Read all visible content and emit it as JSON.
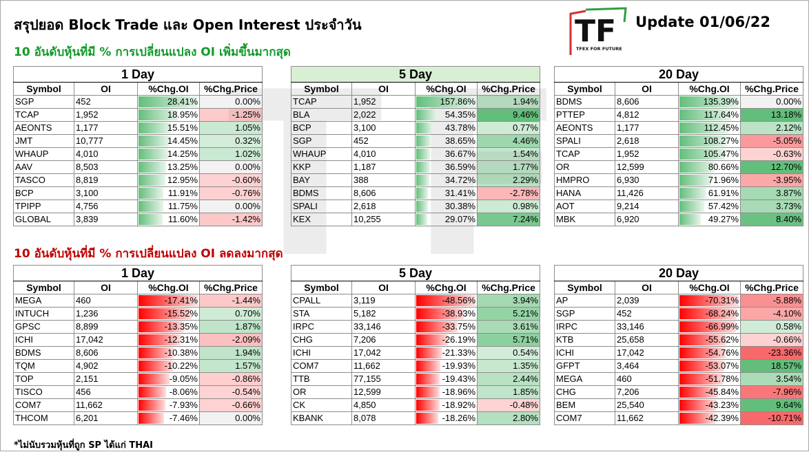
{
  "header": {
    "title": "สรุปยอด Block Trade และ Open Interest ประจำวัน",
    "update": "Update 01/06/22"
  },
  "logo": {
    "letters": "TF",
    "caption": "TFEX FOR FUTURE"
  },
  "section_up": {
    "title": "10 อันดับหุ้นที่มี % การเปลี่ยนแปลง OI เพิ่มขึ้นมากสุด"
  },
  "section_down": {
    "title": "10 อันดับหุ้นที่มี % การเปลี่ยนแปลง OI ลดลงมากสุด"
  },
  "footnote": "*ไม่นับรวมหุ้นที่ถูก SP ได้แก่ THAI",
  "columns": [
    "Symbol",
    "OI",
    "%Chg.OI",
    "%Chg.Price"
  ],
  "colors": {
    "up": "#119a2b",
    "down": "#c00000",
    "bar_green": "#5cb85c",
    "bar_red": "#ff0000",
    "price_green": "#63be7b",
    "price_red": "#f8696b"
  },
  "up_tables": [
    {
      "period": "1 Day",
      "rows": [
        [
          "SGP",
          "452",
          "28.41%",
          "0.00%"
        ],
        [
          "TCAP",
          "1,952",
          "18.95%",
          "-1.25%"
        ],
        [
          "AEONTS",
          "1,177",
          "15.51%",
          "1.05%"
        ],
        [
          "JMT",
          "10,777",
          "14.45%",
          "0.32%"
        ],
        [
          "WHAUP",
          "4,010",
          "14.25%",
          "1.02%"
        ],
        [
          "AAV",
          "8,503",
          "13.25%",
          "0.00%"
        ],
        [
          "TASCO",
          "8,819",
          "12.95%",
          "-0.60%"
        ],
        [
          "BCP",
          "3,100",
          "11.91%",
          "-0.76%"
        ],
        [
          "TPIPP",
          "4,756",
          "11.75%",
          "0.00%"
        ],
        [
          "GLOBAL",
          "3,839",
          "11.60%",
          "-1.42%"
        ]
      ]
    },
    {
      "period": "5 Day",
      "rows": [
        [
          "TCAP",
          "1,952",
          "157.86%",
          "1.94%"
        ],
        [
          "BLA",
          "2,022",
          "54.35%",
          "9.46%"
        ],
        [
          "BCP",
          "3,100",
          "43.78%",
          "0.77%"
        ],
        [
          "SGP",
          "452",
          "38.65%",
          "4.46%"
        ],
        [
          "WHAUP",
          "4,010",
          "36.67%",
          "1.54%"
        ],
        [
          "KKP",
          "1,187",
          "36.59%",
          "1.77%"
        ],
        [
          "BAY",
          "388",
          "34.72%",
          "2.29%"
        ],
        [
          "BDMS",
          "8,606",
          "31.41%",
          "-2.78%"
        ],
        [
          "SPALI",
          "2,618",
          "30.38%",
          "0.98%"
        ],
        [
          "KEX",
          "10,255",
          "29.07%",
          "7.24%"
        ]
      ]
    },
    {
      "period": "20 Day",
      "rows": [
        [
          "BDMS",
          "8,606",
          "135.39%",
          "0.00%"
        ],
        [
          "PTTEP",
          "4,812",
          "117.64%",
          "13.18%"
        ],
        [
          "AEONTS",
          "1,177",
          "112.45%",
          "2.12%"
        ],
        [
          "SPALI",
          "2,618",
          "108.27%",
          "-5.05%"
        ],
        [
          "TCAP",
          "1,952",
          "105.47%",
          "-0.63%"
        ],
        [
          "OR",
          "12,599",
          "80.66%",
          "12.70%"
        ],
        [
          "HMPRO",
          "6,930",
          "71.96%",
          "-3.95%"
        ],
        [
          "HANA",
          "11,426",
          "61.91%",
          "3.87%"
        ],
        [
          "AOT",
          "9,214",
          "57.42%",
          "3.73%"
        ],
        [
          "MBK",
          "6,920",
          "49.27%",
          "8.40%"
        ]
      ]
    }
  ],
  "down_tables": [
    {
      "period": "1 Day",
      "rows": [
        [
          "MEGA",
          "460",
          "-17.41%",
          "-1.44%"
        ],
        [
          "INTUCH",
          "1,236",
          "-15.52%",
          "0.70%"
        ],
        [
          "GPSC",
          "8,899",
          "-13.35%",
          "1.87%"
        ],
        [
          "ICHI",
          "17,042",
          "-12.31%",
          "-2.09%"
        ],
        [
          "BDMS",
          "8,606",
          "-10.38%",
          "1.94%"
        ],
        [
          "TQM",
          "4,902",
          "-10.22%",
          "1.57%"
        ],
        [
          "TOP",
          "2,151",
          "-9.05%",
          "-0.86%"
        ],
        [
          "TISCO",
          "456",
          "-8.06%",
          "-0.54%"
        ],
        [
          "COM7",
          "11,662",
          "-7.93%",
          "-0.66%"
        ],
        [
          "THCOM",
          "6,201",
          "-7.46%",
          "0.00%"
        ]
      ]
    },
    {
      "period": "5 Day",
      "rows": [
        [
          "CPALL",
          "3,119",
          "-48.56%",
          "3.94%"
        ],
        [
          "STA",
          "5,182",
          "-38.93%",
          "5.21%"
        ],
        [
          "IRPC",
          "33,146",
          "-33.75%",
          "3.61%"
        ],
        [
          "CHG",
          "7,206",
          "-26.19%",
          "5.71%"
        ],
        [
          "ICHI",
          "17,042",
          "-21.33%",
          "0.54%"
        ],
        [
          "COM7",
          "11,662",
          "-19.93%",
          "1.35%"
        ],
        [
          "TTB",
          "77,155",
          "-19.43%",
          "2.44%"
        ],
        [
          "OR",
          "12,599",
          "-18.96%",
          "1.85%"
        ],
        [
          "CK",
          "4,850",
          "-18.92%",
          "-0.48%"
        ],
        [
          "KBANK",
          "8,078",
          "-18.26%",
          "2.80%"
        ]
      ]
    },
    {
      "period": "20 Day",
      "rows": [
        [
          "AP",
          "2,039",
          "-70.31%",
          "-5.88%"
        ],
        [
          "SGP",
          "452",
          "-68.24%",
          "-4.10%"
        ],
        [
          "IRPC",
          "33,146",
          "-66.99%",
          "0.58%"
        ],
        [
          "KTB",
          "25,658",
          "-55.62%",
          "-0.66%"
        ],
        [
          "ICHI",
          "17,042",
          "-54.76%",
          "-23.36%"
        ],
        [
          "GFPT",
          "3,464",
          "-53.07%",
          "18.57%"
        ],
        [
          "MEGA",
          "460",
          "-51.78%",
          "3.54%"
        ],
        [
          "CHG",
          "7,206",
          "-45.84%",
          "-7.96%"
        ],
        [
          "BEM",
          "25,540",
          "-43.23%",
          "9.64%"
        ],
        [
          "COM7",
          "11,662",
          "-42.39%",
          "-10.71%"
        ]
      ]
    }
  ]
}
